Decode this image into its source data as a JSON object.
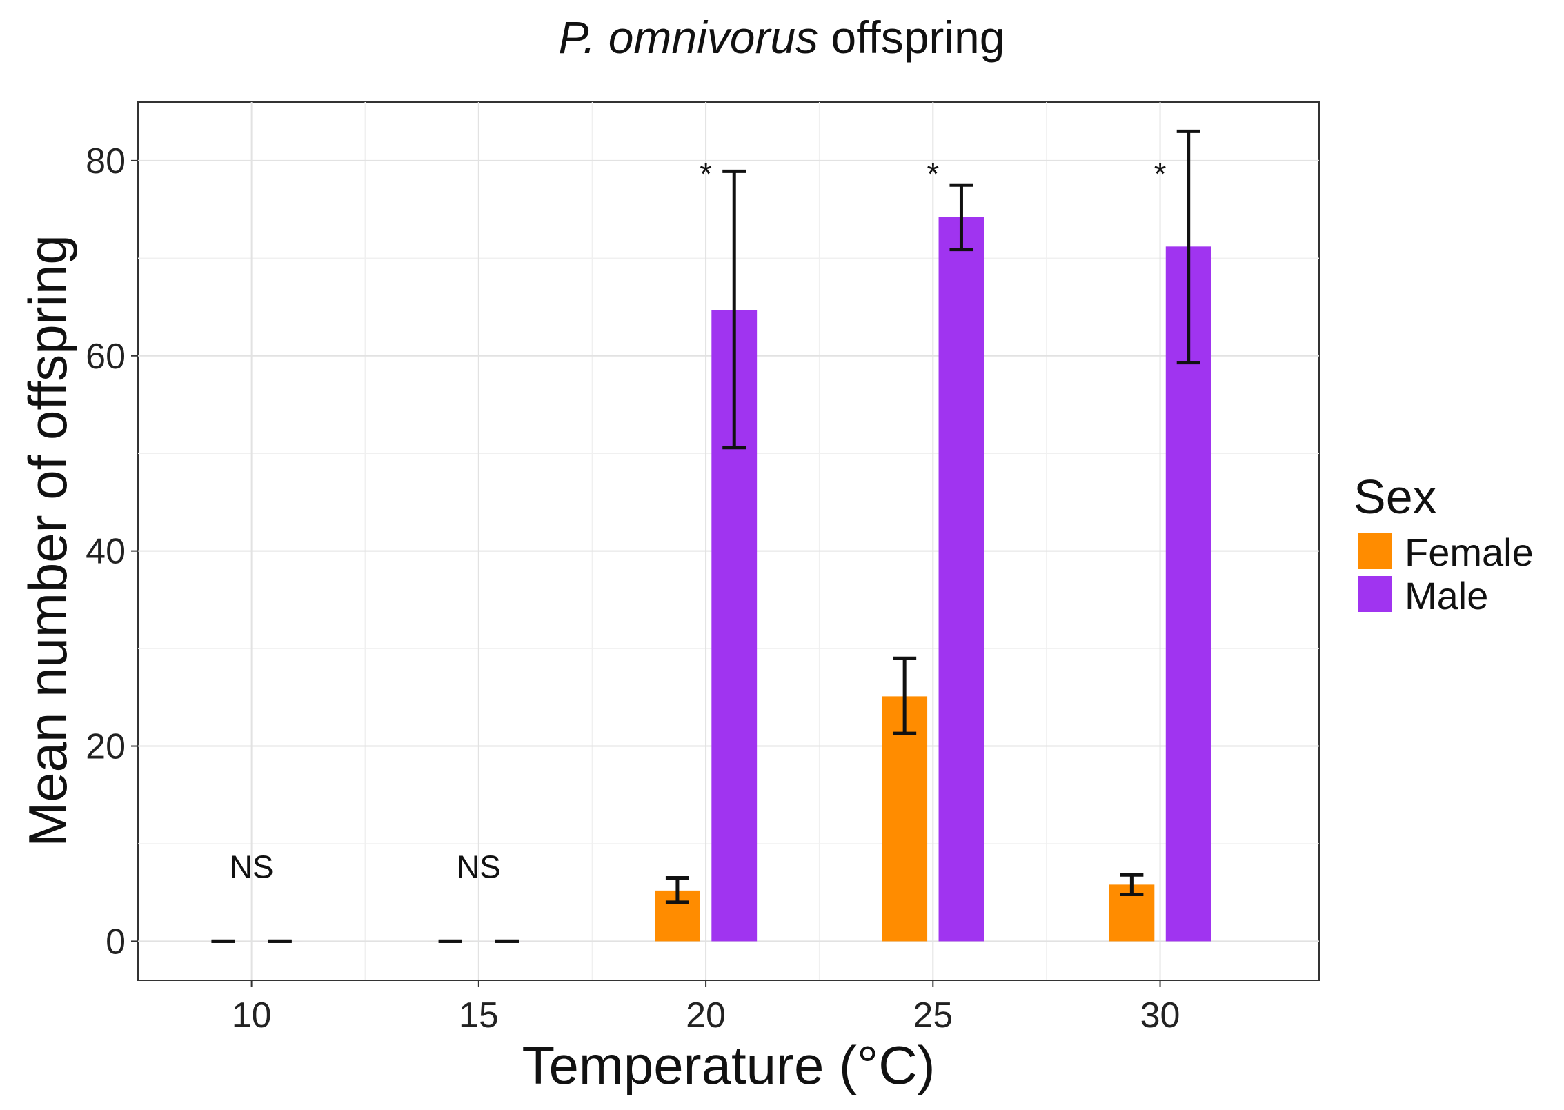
{
  "chart_data": {
    "type": "bar",
    "title": "P. omnivorus offspring",
    "title_italic_part": "P. omnivorus",
    "title_regular_part": " offspring",
    "xlabel": "Temperature (°C)",
    "ylabel": "Mean number of offspring",
    "categories": [
      "10",
      "15",
      "20",
      "25",
      "30"
    ],
    "xlim": [
      7.5,
      33.5
    ],
    "ylim": [
      -4,
      86
    ],
    "y_ticks": [
      0,
      20,
      40,
      60,
      80
    ],
    "x_ticks": [
      10,
      15,
      20,
      25,
      30
    ],
    "grid": true,
    "legend": {
      "title": "Sex",
      "position": "right",
      "entries": [
        "Female",
        "Male"
      ]
    },
    "series": [
      {
        "name": "Female",
        "color": "#ff8c00",
        "values": [
          0,
          0,
          5.2,
          25.1,
          5.8
        ],
        "error_low": [
          0,
          0,
          4.0,
          21.3,
          4.8
        ],
        "error_high": [
          0,
          0,
          6.5,
          29.0,
          6.8
        ]
      },
      {
        "name": "Male",
        "color": "#a034f0",
        "values": [
          0,
          0,
          64.7,
          74.2,
          71.2
        ],
        "error_low": [
          0,
          0,
          50.6,
          70.9,
          59.3
        ],
        "error_high": [
          0,
          0,
          78.9,
          77.5,
          83.0
        ]
      }
    ],
    "annotations": [
      {
        "category": "10",
        "text": "NS"
      },
      {
        "category": "15",
        "text": "NS"
      },
      {
        "category": "20",
        "text": "*"
      },
      {
        "category": "25",
        "text": "*"
      },
      {
        "category": "30",
        "text": "*"
      }
    ]
  }
}
